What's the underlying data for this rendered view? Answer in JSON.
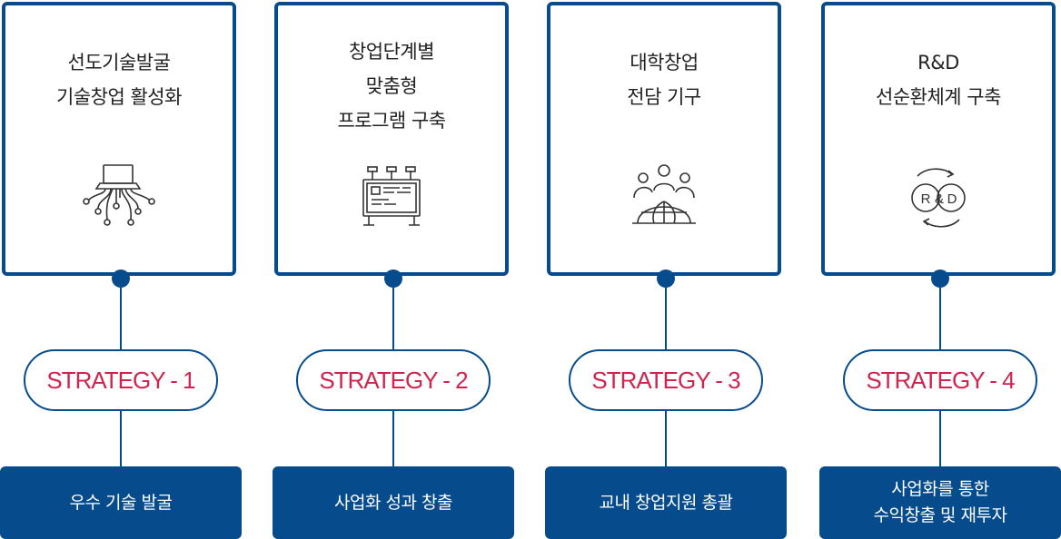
{
  "strategies": [
    {
      "title_lines": [
        "선도기술발굴",
        "기술창업 활성화"
      ],
      "icon": "circuit-laptop-icon",
      "label": "STRATEGY - 1",
      "bottom_lines": [
        "우수 기술 발굴"
      ]
    },
    {
      "title_lines": [
        "창업단계별",
        "맞춤형",
        "프로그램 구축"
      ],
      "icon": "billboard-program-icon",
      "label": "STRATEGY - 2",
      "bottom_lines": [
        "사업화 성과 창출"
      ]
    },
    {
      "title_lines": [
        "대학창업",
        "전담 기구"
      ],
      "icon": "people-globe-icon",
      "label": "STRATEGY - 3",
      "bottom_lines": [
        "교내 창업지원 총괄"
      ]
    },
    {
      "title_lines": [
        "R&D",
        "선순환체계 구축"
      ],
      "icon": "rnd-cycle-icon",
      "icon_text": [
        "R",
        "&",
        "D"
      ],
      "label": "STRATEGY - 4",
      "bottom_lines": [
        "사업화를 통한",
        "수익창출 및 재투자"
      ]
    }
  ],
  "colors": {
    "primary": "#064b8c",
    "accent": "#d2234f",
    "text": "#222222"
  }
}
